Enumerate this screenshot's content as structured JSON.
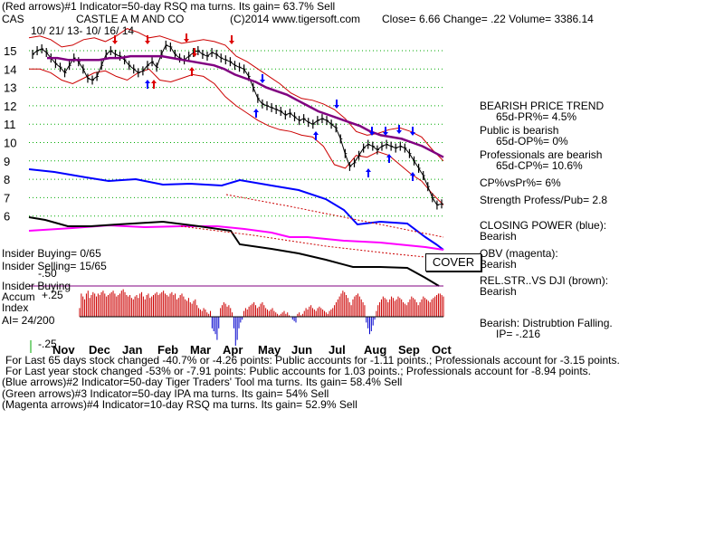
{
  "header": {
    "red_arrows": "(Red arrows)#1 Indicator=50-day RSQ ma turns. Its gain= 63.7% Sell",
    "ticker": "CAS",
    "company": "CASTLE A M AND CO",
    "copyright": "(C)2014 www.tigersoft.com",
    "quote": "Close= 6.66 Change= .22 Volume= 3386.14",
    "date_range": "10/ 21/ 13- 10/ 16/ 14"
  },
  "chart_data": {
    "type": "line",
    "y_ticks": [
      "15",
      "14",
      "13",
      "12",
      "11",
      "10",
      "9",
      "8",
      "7",
      "6"
    ],
    "x_months": [
      "Nov",
      "Dec",
      "Jan",
      "Feb",
      "Mar",
      "Apr",
      "May",
      "Jun",
      "Jul",
      "Aug",
      "Sep",
      "Oct"
    ],
    "ylim": [
      5.5,
      15.5
    ],
    "close_path": [
      14.8,
      15.0,
      15.1,
      14.9,
      14.6,
      14.3,
      14.1,
      13.8,
      14.2,
      14.6,
      14.4,
      14.0,
      13.5,
      13.4,
      13.6,
      14.2,
      14.8,
      15.0,
      14.8,
      14.7,
      14.5,
      14.2,
      14.0,
      13.8,
      13.9,
      14.2,
      14.4,
      14.1,
      14.8,
      15.3,
      15.2,
      14.8,
      14.6,
      14.5,
      14.7,
      14.9,
      15.0,
      14.8,
      14.7,
      14.9,
      14.8,
      14.6,
      14.5,
      14.4,
      14.2,
      14.1,
      14.0,
      13.6,
      13.0,
      12.4,
      12.1,
      12.0,
      11.9,
      11.8,
      11.7,
      11.5,
      11.6,
      11.4,
      11.2,
      11.3,
      11.1,
      11.0,
      11.2,
      11.3,
      11.2,
      11.0,
      10.8,
      10.2,
      9.4,
      8.7,
      8.9,
      9.3,
      9.7,
      9.9,
      9.8,
      9.6,
      9.8,
      9.9,
      9.8,
      9.7,
      9.8,
      9.7,
      9.4,
      9.0,
      8.6,
      8.2,
      7.6,
      7.0,
      6.6,
      6.66
    ],
    "ma_path": [
      14.6,
      14.6,
      14.5,
      14.5,
      14.5,
      14.5,
      14.6,
      14.6,
      14.7,
      14.7,
      14.7,
      14.7,
      14.6,
      14.5,
      14.4,
      14.3,
      14.2,
      14.0,
      13.7,
      13.5,
      13.3,
      13.0,
      12.8,
      12.6,
      12.3,
      12.0,
      11.7,
      11.5,
      11.3,
      11.1,
      10.9,
      10.6,
      10.4,
      10.3,
      10.2,
      10.0,
      9.8,
      9.5,
      9.2
    ],
    "upper_band": [
      15.7,
      15.8,
      15.6,
      15.2,
      15.3,
      15.6,
      15.7,
      15.5,
      15.8,
      16.2,
      16.0,
      15.7,
      15.8,
      15.6,
      15.4,
      15.5,
      15.6,
      15.5,
      15.3,
      14.7,
      14.4,
      14.0,
      13.6,
      13.2,
      12.7,
      12.4,
      12.3,
      12.1,
      11.8,
      11.3,
      10.6,
      10.4,
      10.5,
      10.7,
      10.8,
      10.6,
      10.3,
      9.6,
      9.0
    ],
    "lower_band": [
      14.0,
      14.0,
      13.8,
      13.4,
      13.2,
      13.5,
      13.8,
      13.9,
      13.6,
      13.4,
      13.8,
      14.0,
      13.4,
      13.3,
      13.5,
      13.7,
      13.6,
      13.2,
      12.5,
      12.0,
      11.6,
      11.2,
      10.9,
      10.7,
      10.6,
      10.4,
      10.3,
      9.8,
      8.8,
      8.6,
      9.3,
      9.2,
      9.5,
      9.3,
      8.8,
      8.3,
      7.9,
      7.2,
      6.6
    ]
  },
  "side": {
    "trend_title": "BEARISH PRICE TREND",
    "pr": "65d-PR%= 4.5%",
    "public": "Public is bearish",
    "op": "65d-OP%= 0%",
    "pros": "Professionals are bearish",
    "cp": "65d-CP%= 10.6%",
    "cpvspr": "CP%vsPr%= 6%",
    "strength": "Strength Profess/Pub= 2.8",
    "closing_power": "CLOSING POWER (blue):",
    "cp_state": "Bearish",
    "obv": "OBV (magenta):",
    "obv_state": "Bearish",
    "relstr": "REL.STR..VS DJI (brown):",
    "relstr_state": "Bearish",
    "distribution": "Bearish: Distrubtion Falling.",
    "ip": "IP= -.216"
  },
  "insider": {
    "buying": "Insider Buying= 0/65",
    "selling": "Insider Selling= 15/65",
    "minus50": "-.50",
    "buying_label": "Insider Buying",
    "cover_button": "COVER"
  },
  "accum": {
    "label": "Accum",
    "plus25": "+.25",
    "index": "Index",
    "ai": "AI= 24/200",
    "minus25": "-.25",
    "values": [
      0.06,
      0.16,
      0.14,
      0.12,
      0.16,
      0.18,
      0.13,
      0.15,
      0.17,
      0.16,
      0.14,
      0.16,
      0.15,
      0.17,
      0.18,
      0.16,
      0.14,
      0.15,
      0.16,
      0.17,
      0.18,
      0.16,
      0.14,
      0.15,
      0.16,
      0.18,
      0.19,
      0.17,
      0.15,
      0.14,
      0.15,
      0.13,
      0.12,
      0.14,
      0.15,
      0.13,
      0.16,
      0.17,
      0.14,
      0.12,
      0.15,
      0.16,
      0.13,
      0.14,
      0.15,
      0.16,
      0.17,
      0.15,
      0.16,
      0.17,
      0.18,
      0.16,
      0.15,
      0.14,
      0.16,
      0.17,
      0.15,
      0.16,
      0.12,
      0.13,
      0.15,
      0.16,
      0.14,
      0.12,
      0.11,
      0.13,
      0.1,
      0.09,
      0.11,
      0.12,
      0.08,
      0.06,
      0.05,
      0.04,
      0.06,
      0.05,
      0.03,
      0.02,
      0.04,
      -0.08,
      -0.1,
      -0.12,
      -0.16,
      -0.08,
      0.06,
      0.08,
      0.1,
      0.09,
      0.07,
      0.08,
      0.06,
      0.03,
      -0.08,
      -0.2,
      -0.16,
      -0.08,
      -0.04,
      -0.02,
      0.04,
      0.06,
      0.05,
      0.07,
      0.08,
      0.09,
      0.1,
      0.08,
      0.06,
      0.07,
      0.09,
      0.1,
      0.08,
      0.06,
      0.05,
      0.04,
      0.05,
      0.06,
      0.04,
      0.03,
      0.02,
      0.01,
      0.02,
      0.03,
      0.04,
      0.02,
      0.03,
      0.01,
      0.0,
      -0.02,
      -0.03,
      -0.04,
      0.02,
      0.03,
      0.01,
      0.02,
      0.04,
      0.06,
      0.05,
      0.07,
      0.08,
      0.06,
      0.05,
      0.04,
      0.06,
      0.07,
      0.06,
      0.05,
      0.04,
      0.03,
      0.02,
      0.04,
      0.05,
      0.06,
      0.08,
      0.1,
      0.12,
      0.14,
      0.16,
      0.18,
      0.17,
      0.15,
      0.13,
      0.1,
      0.08,
      0.12,
      0.14,
      0.15,
      0.16,
      0.14,
      0.12,
      0.1,
      0.08,
      -0.04,
      -0.08,
      -0.12,
      -0.1,
      -0.06,
      -0.02,
      0.04,
      0.08,
      0.1,
      0.12,
      0.14,
      0.13,
      0.12,
      0.1,
      0.12,
      0.14,
      0.13,
      0.11,
      0.12,
      0.14,
      0.13,
      0.12,
      0.1,
      0.09,
      0.08,
      0.1,
      0.12,
      0.14,
      0.13,
      0.12,
      0.1,
      0.08,
      0.1,
      0.12,
      0.14,
      0.13,
      0.12,
      0.11,
      0.1,
      0.12,
      0.13,
      0.14,
      0.15,
      0.16,
      0.16,
      0.15,
      0.14
    ]
  },
  "footer": {
    "line1": "For Last 65 days stock changed -40.7% or -4.26 points: Public accounts for -1.11 points.; Professionals account for -3.15 points.",
    "line2": "For Last year stock changed -53% or -7.91 points: Public accounts for 1.03 points.; Professionals account for -8.94 points.",
    "blue_arrows": "(Blue arrows)#2 Indicator=50-day Tiger Traders' Tool ma turns. Its gain= 58.4% Sell",
    "green_arrows": "(Green arrows)#3 Indicator=50-day IPA ma turns. Its gain= 54% Sell",
    "magenta_arrows": "(Magenta arrows)#4 Indicator=10-day RSQ ma turns. Its gain= 52.9% Sell"
  },
  "colors": {
    "price": "#000000",
    "ma": "#800080",
    "band": "#cc0000",
    "closing_power": "#0000ff",
    "obv": "#ff00ff",
    "relstr": "#000000",
    "accum_pos": "#cc0000",
    "accum_neg": "#0000cc",
    "grid": "#00aa00"
  }
}
